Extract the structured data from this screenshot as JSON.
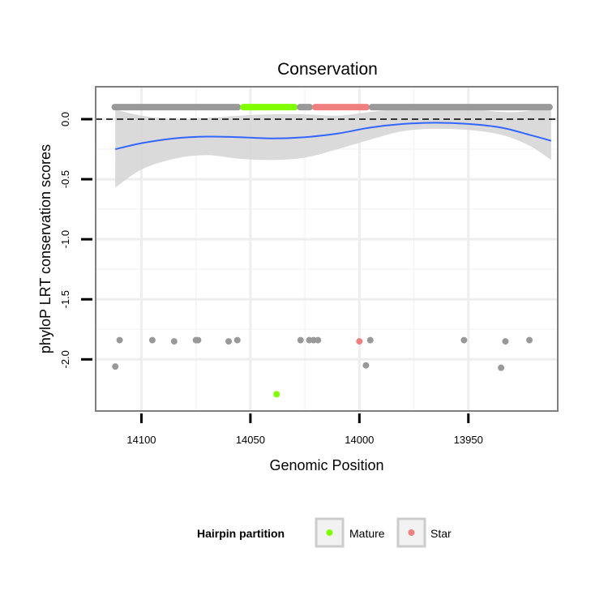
{
  "chart_data": {
    "type": "scatter",
    "title": "Conservation",
    "xlabel": "Genomic Position",
    "ylabel": "phyloP LRT conservation scores",
    "x_reversed": true,
    "xlim": [
      14121,
      13909
    ],
    "ylim": [
      -2.43,
      0.27
    ],
    "x_ticks": [
      14100,
      14050,
      14000,
      13950
    ],
    "x_tick_labels": [
      "14100",
      "14050",
      "14000",
      "13950"
    ],
    "y_ticks": [
      0.0,
      -0.5,
      -1.0,
      -1.5,
      -2.0
    ],
    "y_tick_labels": [
      "0.0",
      "-0.5",
      "-1.0",
      "-1.5",
      "-2.0"
    ],
    "reference_line": {
      "y": 0.0,
      "style": "dashed",
      "color": "#000000"
    },
    "legend": {
      "title": "Hairpin partition",
      "entries": [
        {
          "label": "Mature",
          "color": "#7FFF00"
        },
        {
          "label": "Star",
          "color": "#F08080"
        }
      ]
    },
    "colors": {
      "other": "#999999",
      "Mature": "#7FFF00",
      "Star": "#F08080",
      "smooth": "#3366FF",
      "band": "#d3d3d3"
    },
    "top_band": [
      {
        "name": "Other",
        "x_from": 14113,
        "x_to": 14055,
        "y": 0.1
      },
      {
        "name": "Mature",
        "x_from": 14054,
        "x_to": 14029,
        "y": 0.1
      },
      {
        "name": "Other",
        "x_from": 14028,
        "x_to": 14022,
        "y": 0.1
      },
      {
        "name": "Star",
        "x_from": 14021,
        "x_to": 13996,
        "y": 0.1
      },
      {
        "name": "Other",
        "x_from": 13995,
        "x_to": 13912,
        "y": 0.1
      }
    ],
    "series": [
      {
        "name": "Other",
        "points": [
          [
            14112,
            -2.06
          ],
          [
            14110,
            -1.84
          ],
          [
            14095,
            -1.84
          ],
          [
            14085,
            -1.85
          ],
          [
            14075,
            -1.84
          ],
          [
            14074,
            -1.84
          ],
          [
            14060,
            -1.85
          ],
          [
            14056,
            -1.84
          ],
          [
            14027,
            -1.84
          ],
          [
            14023,
            -1.84
          ],
          [
            14021,
            -1.84
          ],
          [
            14019,
            -1.84
          ],
          [
            13997,
            -2.05
          ],
          [
            13995,
            -1.84
          ],
          [
            13952,
            -1.84
          ],
          [
            13935,
            -2.07
          ],
          [
            13933,
            -1.85
          ],
          [
            13922,
            -1.84
          ]
        ]
      },
      {
        "name": "Mature",
        "points": [
          [
            14038,
            -2.29
          ]
        ]
      },
      {
        "name": "Star",
        "points": [
          [
            14000,
            -1.85
          ]
        ]
      }
    ],
    "smooth": {
      "x": [
        14112,
        14100,
        14085,
        14070,
        14055,
        14040,
        14025,
        14010,
        13995,
        13980,
        13965,
        13950,
        13935,
        13922,
        13912
      ],
      "y": [
        -0.25,
        -0.2,
        -0.16,
        -0.145,
        -0.15,
        -0.16,
        -0.15,
        -0.12,
        -0.07,
        -0.04,
        -0.03,
        -0.04,
        -0.07,
        -0.13,
        -0.18
      ],
      "lower": [
        -0.57,
        -0.42,
        -0.33,
        -0.3,
        -0.33,
        -0.34,
        -0.32,
        -0.25,
        -0.17,
        -0.1,
        -0.08,
        -0.09,
        -0.13,
        -0.22,
        -0.34
      ],
      "upper": [
        0.08,
        0.03,
        0.0,
        0.01,
        0.03,
        0.04,
        0.04,
        0.03,
        0.06,
        0.09,
        0.1,
        0.09,
        0.06,
        0.07,
        0.13
      ]
    }
  }
}
